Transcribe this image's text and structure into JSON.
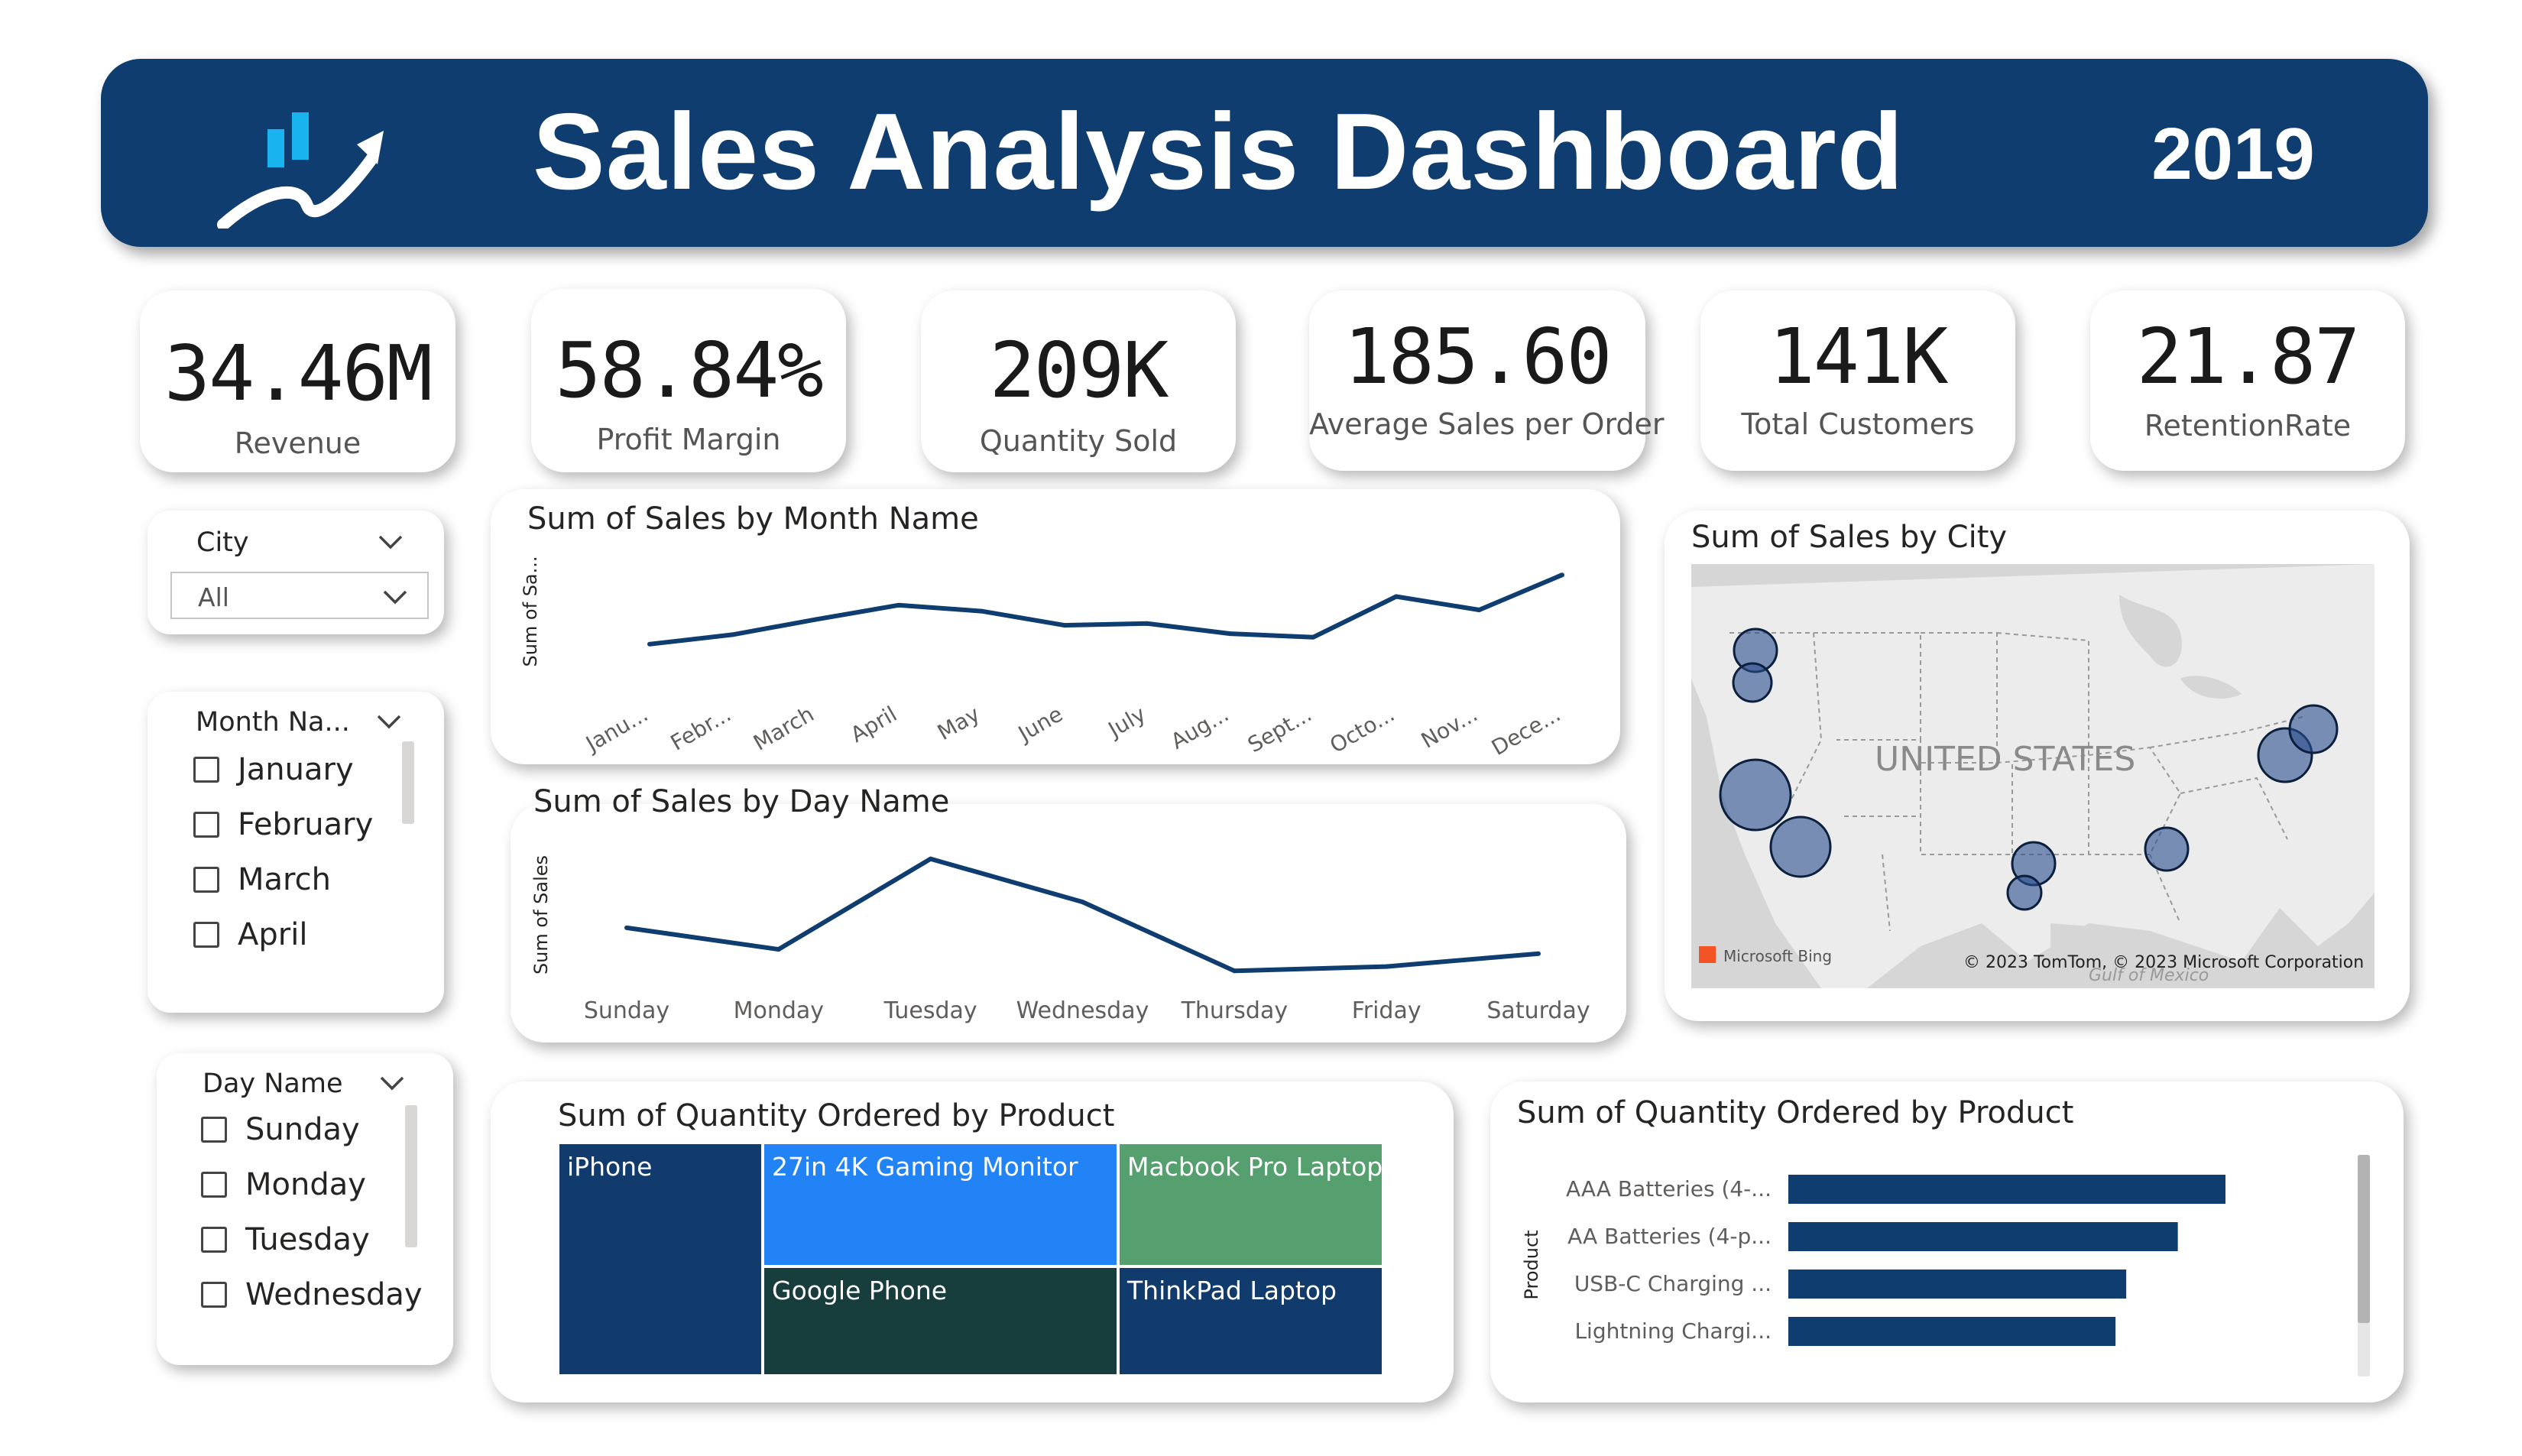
{
  "header": {
    "title": "Sales Analysis Dashboard",
    "year": "2019",
    "logo_icon": "chart-growth-icon",
    "background": "#0f3d70"
  },
  "kpis": [
    {
      "value": "34.46M",
      "label": "Revenue"
    },
    {
      "value": "58.84%",
      "label": "Profit Margin"
    },
    {
      "value": "209K",
      "label": "Quantity Sold"
    },
    {
      "value": "185.60",
      "label": "Average Sales per Order"
    },
    {
      "value": "141K",
      "label": "Total Customers"
    },
    {
      "value": "21.87",
      "label": "RetentionRate"
    }
  ],
  "slicers": {
    "city": {
      "title": "City",
      "selected": "All"
    },
    "month": {
      "title": "Month Na...",
      "items": [
        "January",
        "February",
        "March",
        "April"
      ]
    },
    "day": {
      "title": "Day Name",
      "items": [
        "Sunday",
        "Monday",
        "Tuesday",
        "Wednesday"
      ]
    }
  },
  "charts": {
    "month_line": {
      "title": "Sum of Sales by Month Name",
      "ylabel": "Sum of Sa...",
      "chart_data": {
        "type": "line",
        "categories": [
          "Janu...",
          "Febr...",
          "March",
          "April",
          "May",
          "June",
          "July",
          "Aug...",
          "Sept...",
          "Octo...",
          "Nov...",
          "Dece..."
        ],
        "values": [
          1.82,
          2.2,
          2.81,
          3.39,
          3.15,
          2.58,
          2.65,
          2.24,
          2.1,
          3.74,
          3.2,
          4.61
        ],
        "color": "#0f3d70"
      }
    },
    "day_line": {
      "title": "Sum of Sales by Day Name",
      "ylabel": "Sum of Sales",
      "chart_data": {
        "type": "line",
        "categories": [
          "Sunday",
          "Monday",
          "Tuesday",
          "Wednesday",
          "Thursday",
          "Friday",
          "Saturday"
        ],
        "values": [
          4.93,
          4.88,
          5.09,
          4.99,
          4.83,
          4.84,
          4.87
        ],
        "color": "#0f3d70"
      }
    },
    "city_map": {
      "title": "Sum of Sales by City",
      "country_label": "UNITED STATES",
      "gulf_label": "Gulf of Mexico",
      "bing_label": "Microsoft Bing",
      "copyright": "© 2023 TomTom, © 2023 Microsoft Corporation",
      "bubble_color": "#1f4e8c"
    },
    "treemap": {
      "title": "Sum of Quantity Ordered by Product",
      "chart_data": {
        "type": "treemap",
        "items": [
          {
            "label": "iPhone",
            "color": "#123b6d"
          },
          {
            "label": "27in 4K Gaming Monitor",
            "color": "#2283f6"
          },
          {
            "label": "Macbook Pro Laptop",
            "color": "#55a06e"
          },
          {
            "label": "Google Phone",
            "color": "#173e3c"
          },
          {
            "label": "ThinkPad Laptop",
            "color": "#123b6d"
          }
        ]
      }
    },
    "product_bar": {
      "title": "Sum of Quantity Ordered by Product",
      "ylabel": "Product",
      "chart_data": {
        "type": "bar",
        "categories": [
          "AAA Batteries (4-...",
          "AA Batteries (4-p...",
          "USB-C Charging ...",
          "Lightning Chargi..."
        ],
        "values": [
          31017,
          27635,
          23975,
          23217
        ],
        "color": "#0f3d70"
      }
    }
  }
}
